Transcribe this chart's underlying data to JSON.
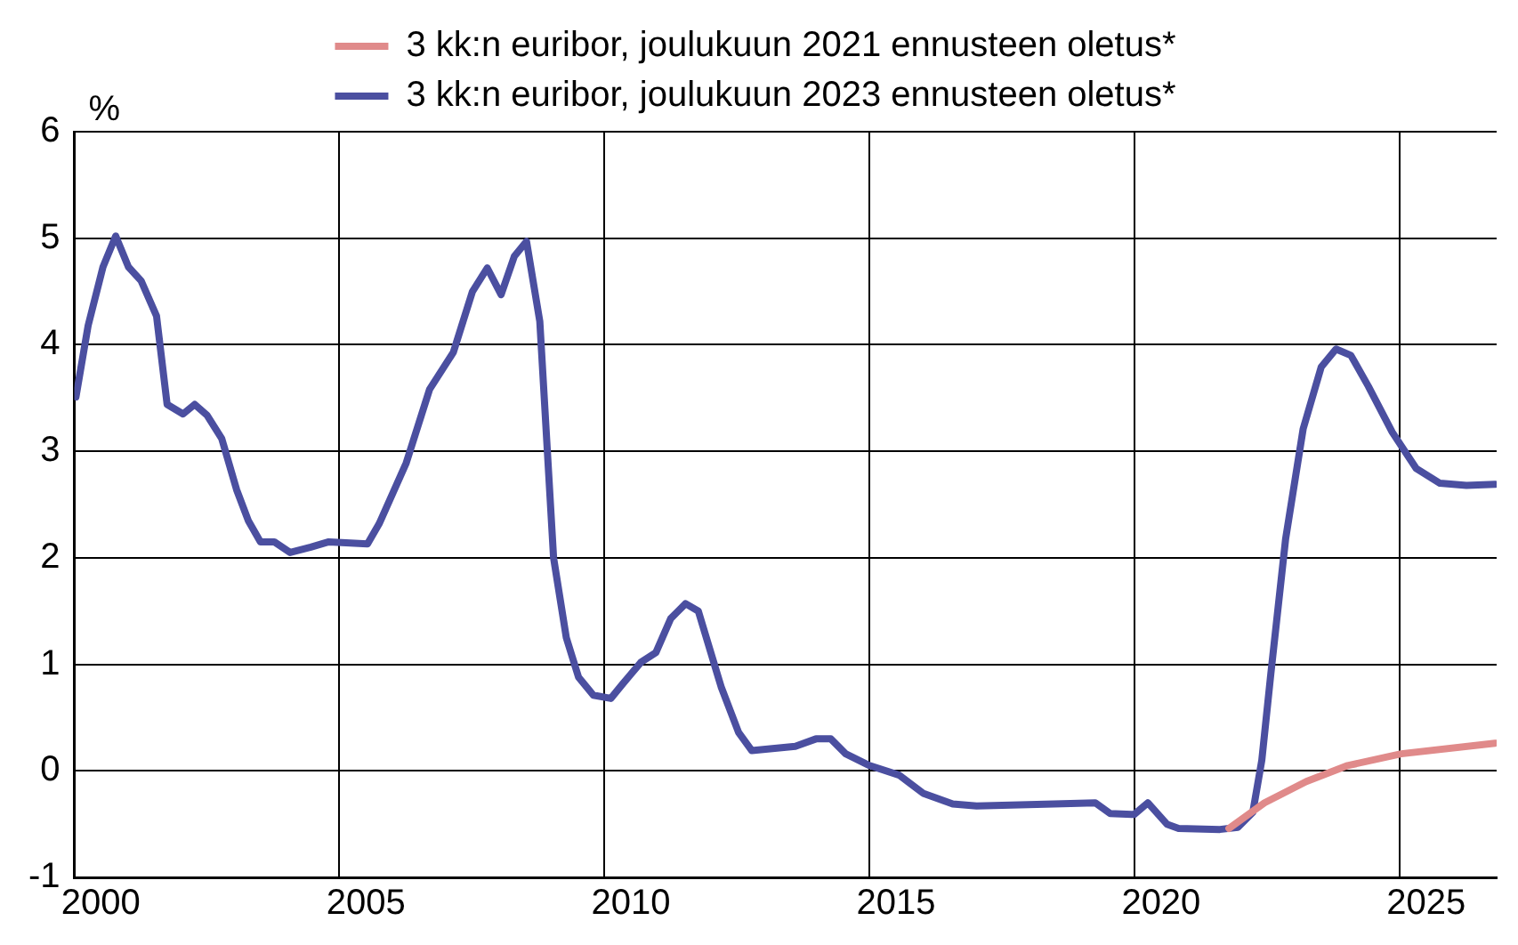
{
  "chart_data": {
    "type": "line",
    "ylabel": "%",
    "legend": "top",
    "grid": true,
    "marker": "none",
    "line_style": "solid",
    "xlim": [
      2000,
      2026.83
    ],
    "ylim": [
      -1,
      6
    ],
    "yticks": [
      -1,
      0,
      1,
      2,
      3,
      4,
      5,
      6
    ],
    "xticks": [
      {
        "value": 2000.5,
        "label": "2000"
      },
      {
        "value": 2005,
        "label": null
      },
      {
        "value": 2005.5,
        "label": "2005"
      },
      {
        "value": 2010,
        "label": null
      },
      {
        "value": 2010.5,
        "label": "2010"
      },
      {
        "value": 2015,
        "label": null
      },
      {
        "value": 2015.5,
        "label": "2015"
      },
      {
        "value": 2020,
        "label": null
      },
      {
        "value": 2020.5,
        "label": "2020"
      },
      {
        "value": 2025,
        "label": null
      },
      {
        "value": 2025.5,
        "label": "2025"
      }
    ],
    "series": [
      {
        "name": "3 kk:n euribor, joulukuun 2021 ennusteen oletus*",
        "color": "#e08a8a",
        "x": [
          2021.78,
          2022.45,
          2023.24,
          2024.02,
          2025.03,
          2026.8
        ],
        "values": [
          -0.54,
          -0.3,
          -0.1,
          0.05,
          0.16,
          0.26
        ]
      },
      {
        "name": "3 kk:n euribor, joulukuun 2023 ennusteen oletus*",
        "color": "#4b4fa0",
        "x": [
          2000.03,
          2000.26,
          2000.54,
          2000.78,
          2001.02,
          2001.26,
          2001.55,
          2001.75,
          2002.05,
          2002.27,
          2002.5,
          2002.78,
          2003.06,
          2003.28,
          2003.51,
          2003.77,
          2004.07,
          2004.46,
          2004.8,
          2005.53,
          2005.75,
          2006.26,
          2006.7,
          2007.15,
          2007.51,
          2007.79,
          2008.05,
          2008.3,
          2008.53,
          2008.78,
          2009.04,
          2009.28,
          2009.51,
          2009.79,
          2010.12,
          2010.35,
          2010.69,
          2010.97,
          2011.25,
          2011.53,
          2011.77,
          2012.2,
          2012.53,
          2012.78,
          2013.6,
          2013.99,
          2014.27,
          2014.55,
          2015.0,
          2015.56,
          2016.01,
          2016.57,
          2017.02,
          2018.48,
          2019.26,
          2019.54,
          2019.99,
          2020.25,
          2020.61,
          2020.83,
          2021.61,
          2021.95,
          2022.23,
          2022.4,
          2022.57,
          2022.85,
          2023.18,
          2023.52,
          2023.8,
          2024.08,
          2024.41,
          2024.86,
          2025.31,
          2025.76,
          2026.26,
          2026.8
        ],
        "values": [
          3.51,
          4.18,
          4.73,
          5.02,
          4.73,
          4.6,
          4.27,
          3.44,
          3.35,
          3.44,
          3.34,
          3.12,
          2.64,
          2.35,
          2.15,
          2.15,
          2.05,
          2.1,
          2.15,
          2.13,
          2.32,
          2.89,
          3.58,
          3.93,
          4.5,
          4.72,
          4.47,
          4.83,
          4.97,
          4.22,
          2.0,
          1.25,
          0.88,
          0.71,
          0.68,
          0.82,
          1.02,
          1.11,
          1.43,
          1.57,
          1.5,
          0.79,
          0.36,
          0.19,
          0.23,
          0.3,
          0.3,
          0.16,
          0.05,
          -0.04,
          -0.21,
          -0.31,
          -0.33,
          -0.31,
          -0.3,
          -0.4,
          -0.41,
          -0.3,
          -0.5,
          -0.54,
          -0.55,
          -0.53,
          -0.39,
          0.1,
          0.91,
          2.18,
          3.21,
          3.79,
          3.96,
          3.9,
          3.61,
          3.18,
          2.84,
          2.7,
          2.68,
          2.69
        ]
      }
    ]
  }
}
